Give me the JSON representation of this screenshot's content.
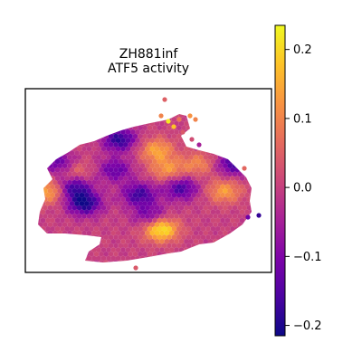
{
  "chart_data": {
    "type": "heatmap",
    "subtype": "spatial-hexbin",
    "title_line1": "ZH881inf",
    "title_line2": "ATF5 activity",
    "xlabel": "",
    "ylabel": "",
    "grid": false,
    "colormap": "plasma",
    "colorbar": {
      "vmin": -0.215,
      "vmax": 0.235,
      "ticks": [
        -0.2,
        -0.1,
        0.0,
        0.1,
        0.2
      ],
      "tick_labels": [
        "−0.2",
        "−0.1",
        "0.0",
        "0.1",
        "0.2"
      ],
      "placement": "right"
    },
    "activity_summary": {
      "high_hotspots": [
        {
          "x": 0.57,
          "y": 0.77,
          "value": 0.23
        },
        {
          "x": 0.06,
          "y": 0.52,
          "value": 0.15
        },
        {
          "x": 0.55,
          "y": 0.25,
          "value": 0.14
        },
        {
          "x": 0.86,
          "y": 0.52,
          "value": 0.13
        },
        {
          "x": 0.6,
          "y": 0.38,
          "value": 0.12
        },
        {
          "x": 0.2,
          "y": 0.09,
          "value": 0.1
        },
        {
          "x": 0.17,
          "y": 0.39,
          "value": 0.11
        },
        {
          "x": 0.74,
          "y": 0.34,
          "value": 0.1
        }
      ],
      "low_hotspots": [
        {
          "x": 0.22,
          "y": 0.6,
          "value": -0.21
        },
        {
          "x": 0.17,
          "y": 0.49,
          "value": -0.18
        },
        {
          "x": 0.38,
          "y": 0.18,
          "value": -0.19
        },
        {
          "x": 0.47,
          "y": 0.54,
          "value": -0.17
        },
        {
          "x": 0.66,
          "y": 0.5,
          "value": -0.16
        },
        {
          "x": 0.9,
          "y": 0.34,
          "value": -0.16
        },
        {
          "x": 0.11,
          "y": 0.34,
          "value": -0.15
        },
        {
          "x": 0.52,
          "y": 0.68,
          "value": -0.12
        },
        {
          "x": 0.36,
          "y": 0.38,
          "value": -0.13
        }
      ]
    }
  }
}
